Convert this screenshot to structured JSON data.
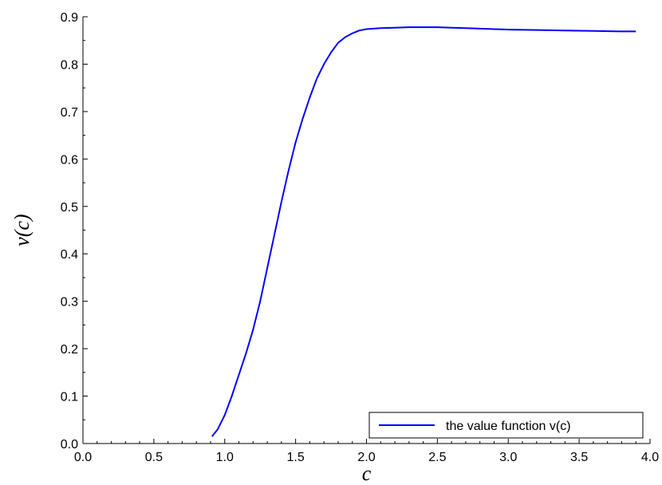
{
  "chart_data": {
    "type": "line",
    "title": "",
    "xlabel": "c",
    "ylabel": "v(c)",
    "xlim": [
      0.0,
      4.0
    ],
    "ylim": [
      0.0,
      0.9
    ],
    "x_ticks": [
      "0.0",
      "0.5",
      "1.0",
      "1.5",
      "2.0",
      "2.5",
      "3.0",
      "3.5",
      "4.0"
    ],
    "y_ticks": [
      "0.0",
      "0.1",
      "0.2",
      "0.3",
      "0.4",
      "0.5",
      "0.6",
      "0.7",
      "0.8",
      "0.9"
    ],
    "grid": false,
    "legend_position": "bottom-right",
    "series": [
      {
        "name": "the value function v(c)",
        "color": "#0000ff",
        "x": [
          0.91,
          0.95,
          1.0,
          1.05,
          1.1,
          1.15,
          1.2,
          1.25,
          1.3,
          1.35,
          1.4,
          1.45,
          1.5,
          1.55,
          1.6,
          1.65,
          1.7,
          1.75,
          1.8,
          1.85,
          1.9,
          1.95,
          2.0,
          2.1,
          2.2,
          2.3,
          2.4,
          2.5,
          2.6,
          2.7,
          2.8,
          2.9,
          3.0,
          3.2,
          3.4,
          3.6,
          3.8,
          3.9
        ],
        "y": [
          0.015,
          0.03,
          0.06,
          0.1,
          0.145,
          0.19,
          0.24,
          0.3,
          0.37,
          0.44,
          0.51,
          0.575,
          0.635,
          0.685,
          0.73,
          0.77,
          0.8,
          0.825,
          0.845,
          0.857,
          0.865,
          0.871,
          0.874,
          0.876,
          0.877,
          0.878,
          0.878,
          0.878,
          0.877,
          0.876,
          0.875,
          0.874,
          0.873,
          0.872,
          0.871,
          0.87,
          0.869,
          0.869
        ]
      }
    ]
  }
}
